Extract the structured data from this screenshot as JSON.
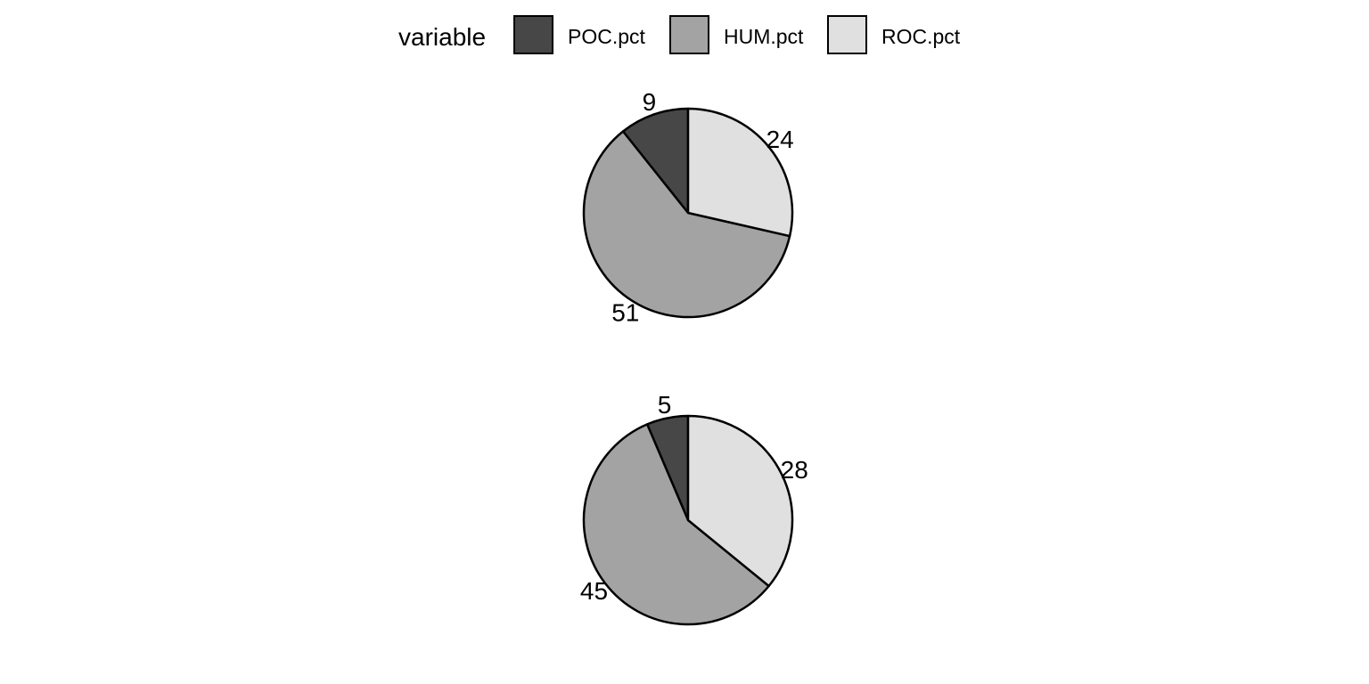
{
  "chart_data": {
    "type": "pie",
    "legend": {
      "title": "variable",
      "position": "top",
      "entries": [
        {
          "name": "POC.pct",
          "color": "#474747"
        },
        {
          "name": "HUM.pct",
          "color": "#a3a3a3"
        },
        {
          "name": "ROC.pct",
          "color": "#e0e0e0"
        }
      ]
    },
    "pies": [
      {
        "categories": [
          "POC.pct",
          "HUM.pct",
          "ROC.pct"
        ],
        "values": [
          9,
          51,
          24
        ],
        "labels": [
          "9",
          "51",
          "24"
        ]
      },
      {
        "categories": [
          "POC.pct",
          "HUM.pct",
          "ROC.pct"
        ],
        "values": [
          5,
          45,
          28
        ],
        "labels": [
          "5",
          "45",
          "28"
        ]
      }
    ],
    "outline_color": "#000000"
  }
}
